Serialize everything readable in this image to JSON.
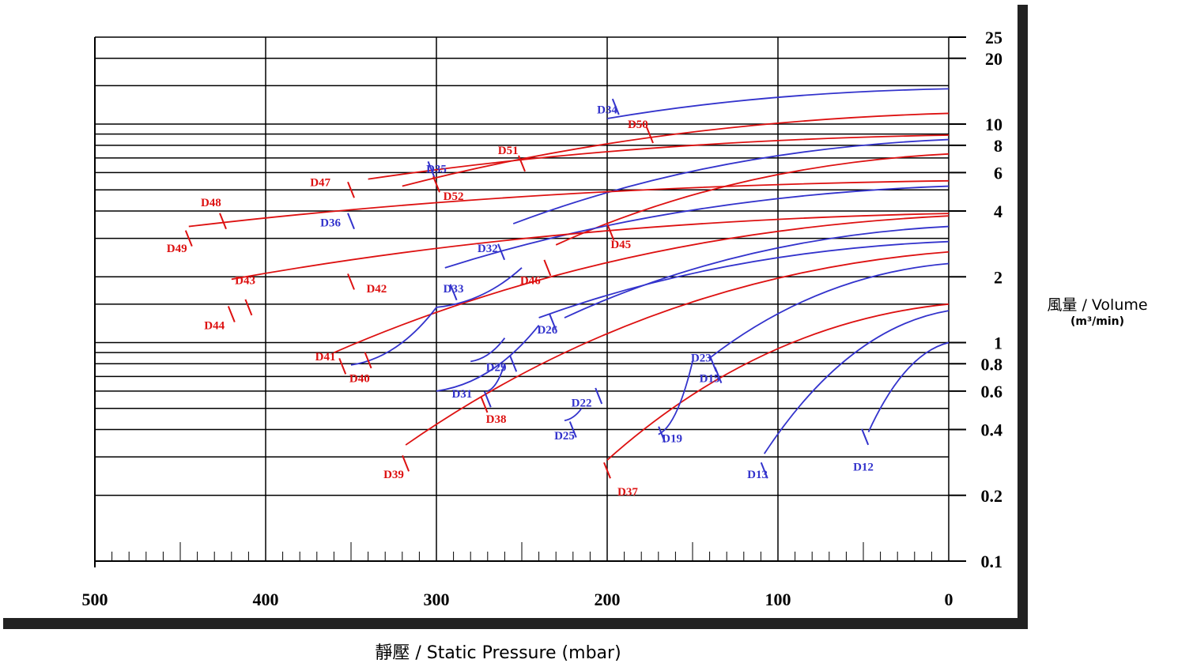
{
  "chart_data": {
    "type": "line",
    "xlabel": "靜壓 / Static Pressure (mbar)",
    "ylabel": "風量 / Volume",
    "ylabel_unit": "(m³/min)",
    "xlim": [
      500,
      0
    ],
    "ylim": [
      0.1,
      25
    ],
    "y_scale": "log",
    "x_ticks": [
      "500",
      "400",
      "300",
      "200",
      "100",
      "0"
    ],
    "x_tick_values": [
      500,
      400,
      300,
      200,
      100,
      0
    ],
    "y_ticks": [
      {
        "v": 25,
        "label": "25"
      },
      {
        "v": 20,
        "label": "20"
      },
      {
        "v": 10,
        "label": "10"
      },
      {
        "v": 8,
        "label": "8"
      },
      {
        "v": 6,
        "label": "6"
      },
      {
        "v": 4,
        "label": "4"
      },
      {
        "v": 2,
        "label": "2"
      },
      {
        "v": 1,
        "label": "1"
      },
      {
        "v": 0.8,
        "label": "0.8"
      },
      {
        "v": 0.6,
        "label": "0.6"
      },
      {
        "v": 0.4,
        "label": "0.4"
      },
      {
        "v": 0.2,
        "label": "0.2"
      },
      {
        "v": 0.1,
        "label": "0.1"
      }
    ],
    "grid": true,
    "colors": {
      "blue": "#3333cc",
      "red": "#dd1111"
    },
    "curves": [
      {
        "from": [
          0,
          14.5
        ],
        "to": [
          200,
          10.6
        ],
        "color": "blue"
      },
      {
        "from": [
          0,
          11.2
        ],
        "to": [
          320,
          5.2
        ],
        "color": "red"
      },
      {
        "from": [
          0,
          8.9
        ],
        "to": [
          340,
          5.6
        ],
        "color": "red"
      },
      {
        "from": [
          0,
          8.5
        ],
        "to": [
          255,
          3.5
        ],
        "color": "blue"
      },
      {
        "from": [
          0,
          7.3
        ],
        "to": [
          230,
          2.8
        ],
        "color": "red"
      },
      {
        "from": [
          0,
          5.5
        ],
        "to": [
          445,
          3.4
        ],
        "color": "red"
      },
      {
        "from": [
          0,
          5.2
        ],
        "to": [
          295,
          2.2
        ],
        "color": "blue"
      },
      {
        "from": [
          0,
          3.9
        ],
        "to": [
          420,
          1.95
        ],
        "color": "red"
      },
      {
        "from": [
          0,
          3.8
        ],
        "to": [
          360,
          0.9
        ],
        "color": "red"
      },
      {
        "from": [
          0,
          3.4
        ],
        "to": [
          225,
          1.3
        ],
        "color": "blue"
      },
      {
        "from": [
          0,
          2.9
        ],
        "to": [
          240,
          1.3
        ],
        "color": "blue"
      },
      {
        "from": [
          0,
          2.6
        ],
        "to": [
          318,
          0.34
        ],
        "color": "red"
      },
      {
        "from": [
          0,
          2.3
        ],
        "to": [
          140,
          0.85
        ],
        "color": "blue"
      },
      {
        "from": [
          0,
          1.5
        ],
        "to": [
          200,
          0.29
        ],
        "color": "red"
      },
      {
        "from": [
          0,
          1.4
        ],
        "to": [
          108,
          0.31
        ],
        "color": "blue"
      },
      {
        "from": [
          0,
          1.0
        ],
        "to": [
          47,
          0.39
        ],
        "color": "blue"
      },
      {
        "from": [
          350,
          0.79
        ],
        "to": [
          300,
          1.45
        ],
        "color": "blue"
      },
      {
        "from": [
          300,
          1.45
        ],
        "to": [
          250,
          2.2
        ],
        "color": "blue"
      },
      {
        "from": [
          280,
          0.82
        ],
        "to": [
          260,
          1.05
        ],
        "color": "blue"
      },
      {
        "from": [
          270,
          0.6
        ],
        "to": [
          260,
          0.8
        ],
        "color": "blue"
      },
      {
        "from": [
          225,
          0.44
        ],
        "to": [
          215,
          0.5
        ],
        "color": "blue"
      },
      {
        "from": [
          170,
          0.38
        ],
        "to": [
          150,
          0.82
        ],
        "color": "blue"
      },
      {
        "from": [
          300,
          0.6
        ],
        "to": [
          240,
          1.2
        ],
        "color": "blue"
      }
    ],
    "curve_labels": [
      {
        "name": "D34",
        "x": 200,
        "y": 11.2,
        "color": "blue",
        "mark": [
          195,
          12.0
        ]
      },
      {
        "name": "D50",
        "x": 182,
        "y": 9.6,
        "color": "red",
        "mark": [
          175,
          8.9
        ]
      },
      {
        "name": "D51",
        "x": 258,
        "y": 7.3,
        "color": "red",
        "mark": [
          250,
          6.6
        ]
      },
      {
        "name": "D35",
        "x": 300,
        "y": 6.0,
        "color": "blue",
        "mark": [
          303,
          6.2
        ]
      },
      {
        "name": "D47",
        "x": 368,
        "y": 5.2,
        "color": "red",
        "mark": [
          350,
          5.0
        ]
      },
      {
        "name": "D52",
        "x": 290,
        "y": 4.5,
        "color": "red",
        "mark": [
          300,
          5.3
        ]
      },
      {
        "name": "D48",
        "x": 432,
        "y": 4.2,
        "color": "red",
        "mark": [
          425,
          3.6
        ]
      },
      {
        "name": "D36",
        "x": 362,
        "y": 3.4,
        "color": "blue",
        "mark": [
          350,
          3.6
        ]
      },
      {
        "name": "D49",
        "x": 452,
        "y": 2.6,
        "color": "red",
        "mark": [
          445,
          3.0
        ]
      },
      {
        "name": "D45",
        "x": 192,
        "y": 2.7,
        "color": "red",
        "mark": [
          198,
          3.2
        ]
      },
      {
        "name": "D32",
        "x": 270,
        "y": 2.6,
        "color": "blue",
        "mark": [
          262,
          2.6
        ]
      },
      {
        "name": "D46",
        "x": 245,
        "y": 1.85,
        "color": "red",
        "mark": [
          235,
          2.2
        ]
      },
      {
        "name": "D43",
        "x": 412,
        "y": 1.85,
        "color": "red",
        "mark": [
          410,
          1.45
        ]
      },
      {
        "name": "D42",
        "x": 335,
        "y": 1.7,
        "color": "red",
        "mark": [
          350,
          1.9
        ]
      },
      {
        "name": "D33",
        "x": 290,
        "y": 1.7,
        "color": "blue",
        "mark": [
          290,
          1.7
        ]
      },
      {
        "name": "D44",
        "x": 430,
        "y": 1.15,
        "color": "red",
        "mark": [
          420,
          1.35
        ]
      },
      {
        "name": "D26",
        "x": 235,
        "y": 1.1,
        "color": "blue",
        "mark": [
          232,
          1.25
        ]
      },
      {
        "name": "D41",
        "x": 365,
        "y": 0.83,
        "color": "red",
        "mark": [
          355,
          0.78
        ]
      },
      {
        "name": "D40",
        "x": 345,
        "y": 0.66,
        "color": "red",
        "mark": [
          340,
          0.83
        ]
      },
      {
        "name": "D29",
        "x": 265,
        "y": 0.74,
        "color": "blue",
        "mark": [
          255,
          0.8
        ]
      },
      {
        "name": "D23",
        "x": 145,
        "y": 0.82,
        "color": "blue",
        "mark": [
          138,
          0.8
        ]
      },
      {
        "name": "D15",
        "x": 140,
        "y": 0.66,
        "color": "blue",
        "mark": [
          135,
          0.71
        ]
      },
      {
        "name": "D31",
        "x": 285,
        "y": 0.56,
        "color": "blue",
        "mark": [
          270,
          0.55
        ]
      },
      {
        "name": "D38",
        "x": 265,
        "y": 0.43,
        "color": "red",
        "mark": [
          272,
          0.52
        ]
      },
      {
        "name": "D22",
        "x": 215,
        "y": 0.51,
        "color": "blue",
        "mark": [
          205,
          0.57
        ]
      },
      {
        "name": "D25",
        "x": 225,
        "y": 0.36,
        "color": "blue",
        "mark": [
          220,
          0.4
        ]
      },
      {
        "name": "D19",
        "x": 162,
        "y": 0.35,
        "color": "blue",
        "mark": [
          168,
          0.38
        ]
      },
      {
        "name": "D39",
        "x": 325,
        "y": 0.24,
        "color": "red",
        "mark": [
          318,
          0.28
        ]
      },
      {
        "name": "D13",
        "x": 112,
        "y": 0.24,
        "color": "blue",
        "mark": [
          108,
          0.26
        ]
      },
      {
        "name": "D12",
        "x": 50,
        "y": 0.26,
        "color": "blue",
        "mark": [
          49,
          0.37
        ]
      },
      {
        "name": "D37",
        "x": 188,
        "y": 0.2,
        "color": "red",
        "mark": [
          200,
          0.26
        ]
      }
    ]
  }
}
